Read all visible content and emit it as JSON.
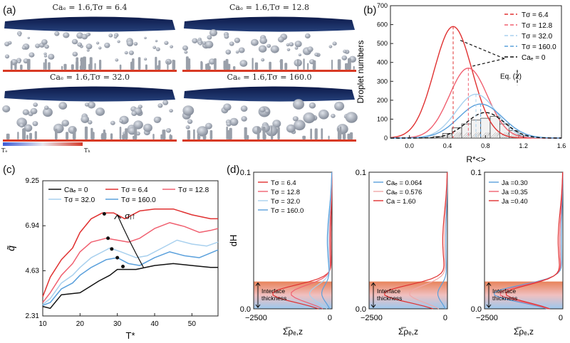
{
  "panel_labels": {
    "a": "(a)",
    "b": "(b)",
    "c": "(c)",
    "d": "(d)"
  },
  "panel_a": {
    "titles": [
      "Caₑ = 1.6,Tσ = 6.4",
      "Caₑ = 1.6,Tσ = 12.8",
      "Caₑ = 1.6,Tσ = 32.0",
      "Caₑ = 1.6,Tσ = 160.0"
    ],
    "colorbar_left": "Tₑ",
    "colorbar_right": "Tₕ"
  },
  "colors": {
    "red": "#e03030",
    "pink": "#f06070",
    "lightblue": "#a8d0ee",
    "blue": "#5aa0dc",
    "black": "#111111",
    "orange": "#e8835a"
  },
  "chart_data": [
    {
      "id": "b",
      "type": "line",
      "xlabel": "R*<>",
      "ylabel": "Droplet numbers",
      "xlim": [
        -0.2,
        1.6
      ],
      "ylim": [
        0,
        700
      ],
      "xticks": [
        "0.0",
        "0.4",
        "0.8",
        "1.2",
        "1.6"
      ],
      "yticks": [
        "0",
        "100",
        "200",
        "300",
        "400",
        "500",
        "600",
        "700"
      ],
      "annotation": "Eq. (2)",
      "legend_position": "top-right",
      "series": [
        {
          "name": "Tσ = 6.4",
          "color": "#e03030",
          "peak_x": 0.46,
          "peak_y": 590,
          "sigma": 0.2
        },
        {
          "name": "Tσ = 12.8",
          "color": "#f06070",
          "peak_x": 0.62,
          "peak_y": 370,
          "sigma": 0.2
        },
        {
          "name": "Tσ = 32.0",
          "color": "#a8d0ee",
          "peak_x": 0.7,
          "peak_y": 232,
          "sigma": 0.21
        },
        {
          "name": "Tσ = 160.0",
          "color": "#5aa0dc",
          "peak_x": 0.75,
          "peak_y": 180,
          "sigma": 0.23
        },
        {
          "name": "Caₑ = 0",
          "color": "#111111",
          "peak_x": 0.8,
          "peak_y": 135,
          "sigma": 0.2
        }
      ],
      "histogram": {
        "bins": [
          0.2,
          0.3,
          0.4,
          0.5,
          0.6,
          0.7,
          0.8,
          0.9,
          1.0,
          1.1,
          1.2,
          1.3
        ],
        "counts": [
          2,
          8,
          25,
          55,
          75,
          95,
          105,
          115,
          75,
          40,
          15,
          5
        ]
      },
      "peak_markers": [
        0.46,
        0.62,
        0.7,
        0.75
      ]
    },
    {
      "id": "c",
      "type": "line",
      "xlabel": "T*",
      "ylabel": "q̃",
      "xlim": [
        10,
        57
      ],
      "ylim": [
        2.31,
        9.25
      ],
      "xticks": [
        10,
        20,
        30,
        40,
        50
      ],
      "yticks": [
        "2.31",
        "4.63",
        "6.94",
        "9.25"
      ],
      "annotation": "σᵢ↑",
      "series": [
        {
          "name": "Caₑ = 0",
          "color": "#111111",
          "x": [
            10,
            12,
            15,
            20,
            25,
            28,
            30,
            32,
            35,
            40,
            45,
            50,
            55,
            57
          ],
          "y": [
            2.8,
            2.7,
            3.4,
            3.5,
            4.1,
            4.4,
            4.7,
            4.7,
            4.7,
            4.9,
            5.0,
            4.9,
            4.8,
            4.8
          ]
        },
        {
          "name": "Tσ = 6.4",
          "color": "#e03030",
          "x": [
            10,
            12,
            15,
            18,
            20,
            23,
            26,
            29,
            32,
            36,
            40,
            45,
            50,
            55,
            57
          ],
          "y": [
            3.3,
            4.3,
            5.2,
            5.8,
            6.6,
            7.3,
            7.6,
            7.6,
            7.3,
            7.7,
            7.8,
            7.8,
            7.5,
            7.3,
            7.3
          ]
        },
        {
          "name": "Tσ = 12.8",
          "color": "#f06070",
          "x": [
            10,
            12,
            15,
            18,
            20,
            23,
            27,
            30,
            33,
            36,
            40,
            44,
            48,
            52,
            55,
            57
          ],
          "y": [
            3.0,
            3.5,
            4.4,
            5.0,
            5.6,
            6.1,
            6.3,
            6.2,
            6.1,
            6.3,
            6.8,
            7.1,
            6.9,
            6.6,
            6.7,
            6.8
          ]
        },
        {
          "name": "Tσ = 32.0",
          "color": "#a8d0ee",
          "x": [
            10,
            12,
            15,
            18,
            20,
            23,
            28,
            31,
            35,
            38,
            42,
            46,
            50,
            54,
            57
          ],
          "y": [
            2.9,
            3.2,
            4.0,
            4.4,
            4.8,
            5.3,
            5.8,
            5.6,
            5.3,
            5.4,
            5.8,
            6.2,
            6.0,
            5.9,
            6.1
          ]
        },
        {
          "name": "Tσ = 160.0",
          "color": "#5aa0dc",
          "x": [
            10,
            12,
            15,
            18,
            20,
            23,
            27,
            30,
            33,
            36,
            40,
            44,
            48,
            52,
            57
          ],
          "y": [
            2.85,
            3.0,
            3.7,
            4.0,
            4.4,
            4.8,
            5.2,
            5.3,
            5.0,
            4.9,
            5.3,
            5.6,
            5.4,
            5.3,
            5.7
          ]
        }
      ],
      "markers": [
        {
          "x": 26.5,
          "y": 7.55
        },
        {
          "x": 27.5,
          "y": 6.3
        },
        {
          "x": 28.5,
          "y": 5.75
        },
        {
          "x": 30,
          "y": 5.3
        },
        {
          "x": 31.5,
          "y": 4.85
        }
      ],
      "legend_position": "top"
    },
    {
      "id": "d",
      "type": "line",
      "ylabel": "dH",
      "xlabel": "Σ̅ρₑ,z",
      "xlim": [
        -2500,
        0
      ],
      "ylim": [
        0,
        0.1
      ],
      "xtick_labels": [
        "−2500",
        "0"
      ],
      "ytick_labels": [
        "0.0",
        "0.1"
      ],
      "annotation": "Interface thickness",
      "subplots": [
        {
          "legend": [
            {
              "name": "Tσ = 6.4",
              "color": "#e03030"
            },
            {
              "name": "Tσ = 12.8",
              "color": "#f06070"
            },
            {
              "name": "Tσ = 32.0",
              "color": "#a8d0ee"
            },
            {
              "name": "Tσ = 160.0",
              "color": "#5aa0dc"
            }
          ],
          "dip_x": [
            -1900,
            -1300,
            -700,
            -300
          ]
        },
        {
          "legend": [
            {
              "name": "Caₑ = 0.064",
              "color": "#5aa0dc"
            },
            {
              "name": "Caₑ = 0.576",
              "color": "#f0a8a8"
            },
            {
              "name": "Ca = 1.60",
              "color": "#e03030"
            }
          ],
          "dip_x": [
            -300,
            -1200,
            -2000
          ]
        },
        {
          "legend": [
            {
              "name": "Ja =0.30",
              "color": "#5aa0dc"
            },
            {
              "name": "Ja =0.35",
              "color": "#f06070"
            },
            {
              "name": "Ja =0.40",
              "color": "#e03030"
            }
          ],
          "dip_x": [
            -2200,
            -2000,
            -1800
          ]
        }
      ]
    }
  ]
}
